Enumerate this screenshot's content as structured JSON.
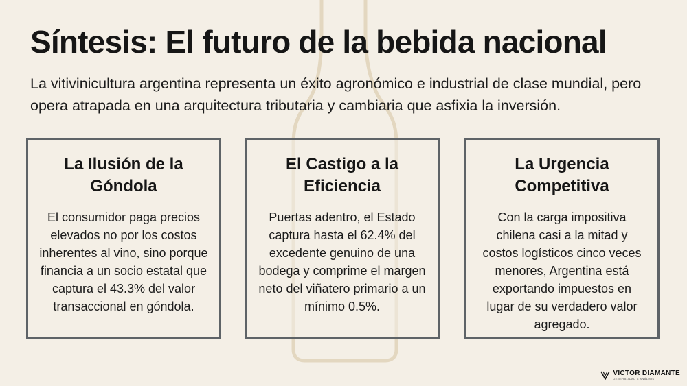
{
  "slide": {
    "title": "Síntesis: El futuro de la bebida nacional",
    "subtitle": "La vitivinicultura argentina representa un éxito agronómico e industrial de clase mundial, pero opera atrapada en una arquitectura tributaria y cambiaria que asfixia la inversión."
  },
  "cards": [
    {
      "title": "La Ilusión de la Góndola",
      "body": "El consumidor paga precios elevados no por los costos inherentes al vino, sino porque financia a un socio estatal que captura el 43.3% del valor transaccional en góndola."
    },
    {
      "title": "El Castigo a la Eficiencia",
      "body": "Puertas adentro, el Estado captura hasta el 62.4% del excedente genuino de una bodega y comprime el margen neto del viñatero primario a un mínimo 0.5%."
    },
    {
      "title": "La Urgencia Competitiva",
      "body": "Con la carga impositiva chilena casi a la mitad y costos logísticos cinco veces menores, Argentina está exportando impuestos en lugar de su verdadero valor agregado."
    }
  ],
  "branding": {
    "name": "VICTOR DIAMANTE",
    "tagline": "GENERALIDAD & ANÁLISIS"
  },
  "colors": {
    "background": "#f4efe6",
    "card_border": "#5e6367",
    "bottle": "#e3d7c0"
  }
}
